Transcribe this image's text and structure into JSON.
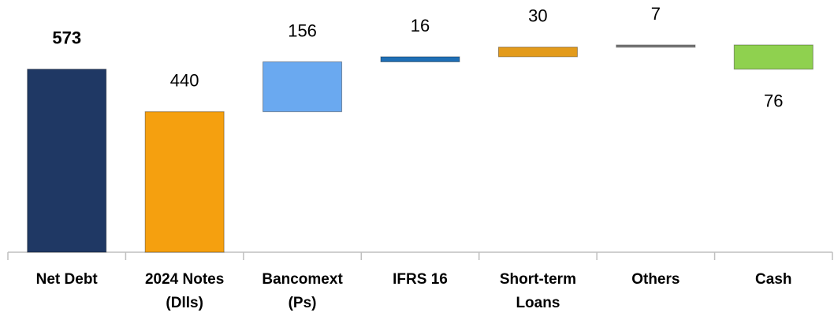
{
  "chart_data": {
    "type": "waterfall",
    "categories": [
      "Net Debt",
      "2024 Notes\n(Dlls)",
      "Bancomext\n(Ps)",
      "IFRS 16",
      "Short-term\nLoans",
      "Others",
      "Cash"
    ],
    "values": [
      573,
      440,
      156,
      16,
      30,
      7,
      -76
    ],
    "value_labels": [
      "573",
      "440",
      "156",
      "16",
      "30",
      "7",
      "76"
    ],
    "colors": [
      "#1f3864",
      "#f5a00f",
      "#6aa9f0",
      "#1f6fb5",
      "#e39b1c",
      "#808080",
      "#8fd14f"
    ]
  }
}
